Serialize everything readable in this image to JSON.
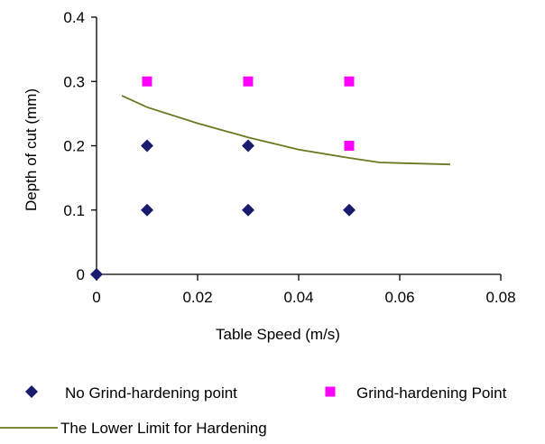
{
  "chart_data": {
    "type": "scatter",
    "xlabel": "Table Speed (m/s)",
    "ylabel": "Depth of cut (mm)",
    "xlim": [
      0,
      0.08
    ],
    "ylim": [
      0,
      0.4
    ],
    "x_ticks": [
      "0",
      "0.02",
      "0.04",
      "0.06",
      "0.08"
    ],
    "y_ticks": [
      "0",
      "0.1",
      "0.2",
      "0.3",
      "0.4"
    ],
    "grid": false,
    "legend_position": "bottom",
    "series": [
      {
        "name": "No Grind-hardening point",
        "marker": "diamond",
        "color": "#1a1a6e",
        "points": [
          [
            0,
            0
          ],
          [
            0.01,
            0.1
          ],
          [
            0.01,
            0.2
          ],
          [
            0.03,
            0.1
          ],
          [
            0.03,
            0.2
          ],
          [
            0.05,
            0.1
          ]
        ]
      },
      {
        "name": "Grind-hardening Point",
        "marker": "square",
        "color": "#ff00ff",
        "points": [
          [
            0.01,
            0.3
          ],
          [
            0.03,
            0.3
          ],
          [
            0.05,
            0.3
          ],
          [
            0.05,
            0.2
          ]
        ]
      },
      {
        "name": "The Lower Limit for Hardening",
        "marker": "line",
        "color": "#6b7a1f",
        "points": [
          [
            0.005,
            0.278
          ],
          [
            0.01,
            0.26
          ],
          [
            0.02,
            0.235
          ],
          [
            0.03,
            0.213
          ],
          [
            0.04,
            0.194
          ],
          [
            0.05,
            0.181
          ],
          [
            0.056,
            0.174
          ],
          [
            0.06,
            0.173
          ],
          [
            0.07,
            0.171
          ]
        ]
      }
    ]
  }
}
